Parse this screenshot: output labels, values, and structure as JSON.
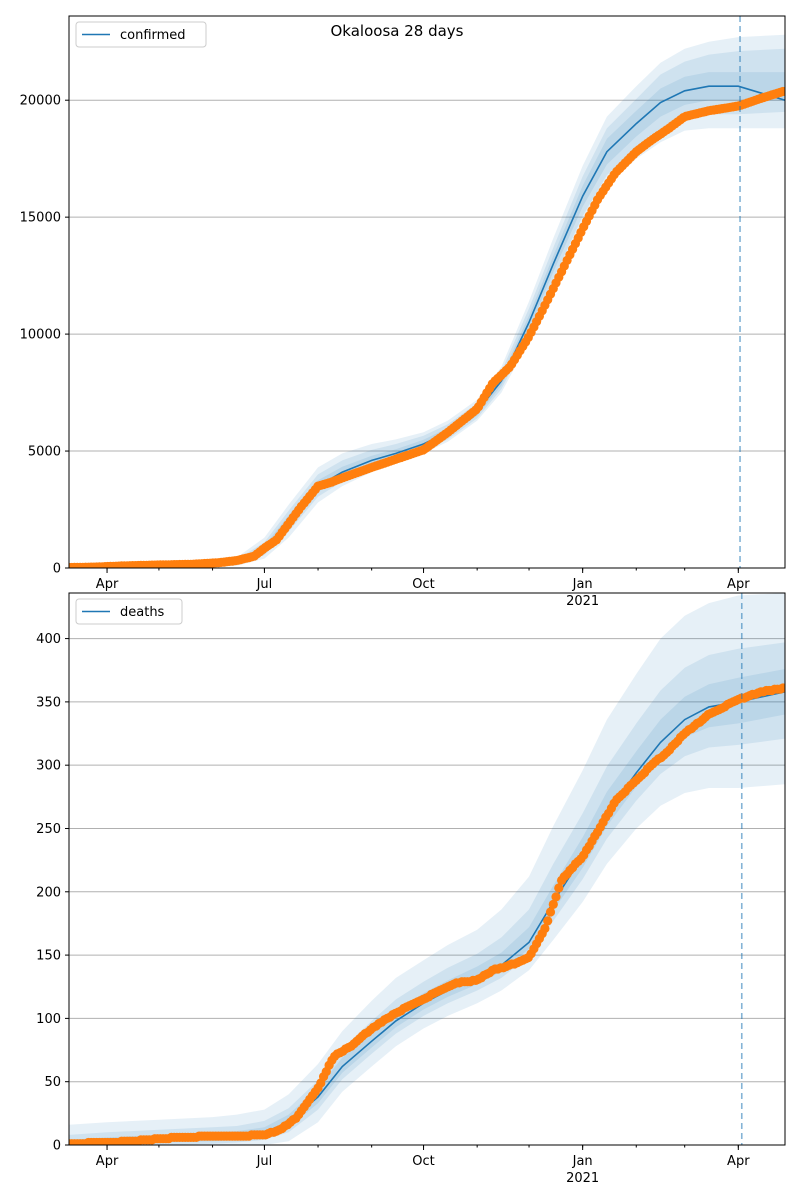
{
  "figure": {
    "title": "Okaloosa 28 days"
  },
  "colors": {
    "model": "#1f77b4",
    "observed": "#ff7f0e",
    "band": "#1f77b4",
    "grid": "#b0b0b0"
  },
  "chart_data": [
    {
      "type": "line",
      "legend": "confirmed",
      "legend_position": "top-left",
      "grid": "y",
      "x_range": [
        "2020-03-10",
        "2021-04-28"
      ],
      "ylim": [
        0,
        23600
      ],
      "y_ticks": [
        0,
        5000,
        10000,
        15000,
        20000
      ],
      "x_ticks": [
        {
          "date": "2020-04-01",
          "label": "Apr"
        },
        {
          "date": "2020-07-01",
          "label": "Jul"
        },
        {
          "date": "2020-10-01",
          "label": "Oct"
        },
        {
          "date": "2021-01-01",
          "label": "Jan",
          "sub": "2021"
        },
        {
          "date": "2021-04-01",
          "label": "Apr"
        }
      ],
      "forecast_start": "2021-04-02",
      "model": {
        "x": [
          "2020-03-10",
          "2020-04-01",
          "2020-05-01",
          "2020-06-01",
          "2020-06-15",
          "2020-07-01",
          "2020-07-15",
          "2020-08-01",
          "2020-08-15",
          "2020-09-01",
          "2020-09-15",
          "2020-10-01",
          "2020-10-15",
          "2020-11-01",
          "2020-11-15",
          "2020-12-01",
          "2020-12-15",
          "2021-01-01",
          "2021-01-15",
          "2021-02-01",
          "2021-02-15",
          "2021-03-01",
          "2021-03-15",
          "2021-04-01",
          "2021-04-28"
        ],
        "values": [
          20,
          60,
          100,
          160,
          250,
          800,
          2000,
          3500,
          4100,
          4600,
          4900,
          5300,
          5800,
          6700,
          8000,
          10500,
          13000,
          15900,
          17800,
          19000,
          19900,
          20400,
          20600,
          20600,
          20000
        ],
        "bands": [
          {
            "lower": [
              0,
              0,
              0,
              40,
              100,
              400,
              1300,
              2800,
              3500,
              4100,
              4500,
              4900,
              5400,
              6300,
              7500,
              9700,
              12000,
              14600,
              16300,
              17500,
              18200,
              18700,
              18800,
              18800,
              18800
            ],
            "upper": [
              40,
              120,
              200,
              280,
              450,
              1300,
              2700,
              4300,
              4900,
              5300,
              5500,
              5800,
              6300,
              7200,
              8600,
              11400,
              14100,
              17200,
              19300,
              20600,
              21600,
              22200,
              22500,
              22700,
              22800
            ]
          },
          {
            "lower": [
              0,
              10,
              40,
              80,
              160,
              550,
              1550,
              3050,
              3700,
              4250,
              4600,
              5000,
              5500,
              6400,
              7650,
              9950,
              12350,
              15050,
              16800,
              18000,
              18700,
              19250,
              19400,
              19400,
              19500
            ],
            "upper": [
              30,
              100,
              160,
              240,
              370,
              1100,
              2450,
              4000,
              4600,
              5050,
              5300,
              5650,
              6150,
              7050,
              8400,
              11100,
              13700,
              16750,
              18800,
              20050,
              21100,
              21650,
              21950,
              22100,
              22200
            ]
          },
          {
            "lower": [
              5,
              30,
              60,
              110,
              200,
              650,
              1750,
              3250,
              3880,
              4400,
              4720,
              5120,
              5620,
              6520,
              7800,
              10200,
              12650,
              15450,
              17250,
              18450,
              19300,
              19800,
              20000,
              20000,
              20000
            ],
            "upper": [
              25,
              80,
              130,
              200,
              300,
              950,
              2250,
              3750,
              4330,
              4800,
              5080,
              5480,
              5980,
              6880,
              8200,
              10800,
              13350,
              16350,
              18350,
              19550,
              20500,
              21000,
              21200,
              21200,
              21200
            ]
          }
        ]
      },
      "observed": {
        "x": [
          "2020-03-10",
          "2020-03-25",
          "2020-04-10",
          "2020-05-01",
          "2020-05-20",
          "2020-06-05",
          "2020-06-15",
          "2020-06-25",
          "2020-07-01",
          "2020-07-08",
          "2020-07-15",
          "2020-07-22",
          "2020-08-01",
          "2020-08-08",
          "2020-08-15",
          "2020-09-01",
          "2020-09-15",
          "2020-10-01",
          "2020-10-15",
          "2020-11-01",
          "2020-11-10",
          "2020-11-20",
          "2020-12-01",
          "2020-12-10",
          "2020-12-20",
          "2021-01-01",
          "2021-01-10",
          "2021-01-20",
          "2021-02-01",
          "2021-02-10",
          "2021-02-20",
          "2021-03-01",
          "2021-03-15",
          "2021-04-01",
          "2021-04-15",
          "2021-04-28"
        ],
        "values": [
          20,
          40,
          90,
          130,
          160,
          230,
          320,
          500,
          850,
          1200,
          1900,
          2600,
          3500,
          3650,
          3850,
          4300,
          4650,
          5050,
          5800,
          6800,
          7900,
          8600,
          9900,
          11200,
          12700,
          14500,
          15800,
          16900,
          17800,
          18300,
          18800,
          19300,
          19550,
          19750,
          20100,
          20400
        ]
      }
    },
    {
      "type": "line",
      "legend": "deaths",
      "legend_position": "top-left",
      "grid": "y",
      "x_range": [
        "2020-03-10",
        "2021-04-28"
      ],
      "ylim": [
        0,
        436
      ],
      "y_ticks": [
        0,
        50,
        100,
        150,
        200,
        250,
        300,
        350,
        400
      ],
      "x_ticks": [
        {
          "date": "2020-04-01",
          "label": "Apr"
        },
        {
          "date": "2020-07-01",
          "label": "Jul"
        },
        {
          "date": "2020-10-01",
          "label": "Oct"
        },
        {
          "date": "2021-01-01",
          "label": "Jan",
          "sub": "2021"
        },
        {
          "date": "2021-04-01",
          "label": "Apr"
        }
      ],
      "forecast_start": "2021-04-03",
      "model": {
        "x": [
          "2020-03-10",
          "2020-04-01",
          "2020-05-01",
          "2020-06-01",
          "2020-06-15",
          "2020-07-01",
          "2020-07-15",
          "2020-08-01",
          "2020-08-15",
          "2020-09-01",
          "2020-09-15",
          "2020-10-01",
          "2020-10-15",
          "2020-11-01",
          "2020-11-15",
          "2020-12-01",
          "2020-12-15",
          "2021-01-01",
          "2021-01-15",
          "2021-02-01",
          "2021-02-15",
          "2021-03-01",
          "2021-03-15",
          "2021-04-01",
          "2021-04-28"
        ],
        "values": [
          1,
          2,
          4,
          6,
          7,
          10,
          18,
          38,
          62,
          82,
          98,
          112,
          122,
          132,
          142,
          160,
          192,
          228,
          262,
          294,
          318,
          336,
          346,
          350,
          358
        ],
        "bands": [
          {
            "lower": [
              0,
              0,
              0,
              0,
              0,
              0,
              3,
              18,
              42,
              62,
              78,
              92,
              102,
              112,
              122,
              138,
              162,
              192,
              222,
              250,
              268,
              278,
              282,
              282,
              285
            ],
            "upper": [
              16,
              18,
              20,
              22,
              24,
              28,
              40,
              64,
              90,
              114,
              132,
              146,
              158,
              170,
              186,
              212,
              252,
              296,
              336,
              372,
              400,
              418,
              428,
              434,
              436
            ]
          },
          {
            "lower": [
              0,
              0,
              0,
              1,
              2,
              4,
              10,
              28,
              52,
              72,
              88,
              102,
              112,
              122,
              132,
              149,
              177,
              210,
              242,
              272,
              293,
              307,
              314,
              316,
              321
            ],
            "upper": [
              8,
              10,
              12,
              14,
              15,
              19,
              29,
              51,
              76,
              98,
              115,
              129,
              140,
              151,
              164,
              186,
              222,
              262,
              299,
              333,
              359,
              377,
              387,
              392,
              397
            ]
          },
          {
            "lower": [
              0,
              1,
              2,
              3,
              4,
              7,
              14,
              33,
              57,
              77,
              93,
              107,
              117,
              127,
              137,
              155,
              185,
              219,
              252,
              283,
              306,
              322,
              330,
              333,
              340
            ],
            "upper": [
              4,
              6,
              8,
              10,
              11,
              14,
              24,
              45,
              69,
              89,
              106,
              120,
              130,
              141,
              152,
              172,
              205,
              243,
              279,
              311,
              336,
              354,
              364,
              369,
              376
            ]
          }
        ]
      },
      "observed": {
        "x": [
          "2020-03-10",
          "2020-04-01",
          "2020-04-15",
          "2020-05-01",
          "2020-05-15",
          "2020-06-01",
          "2020-06-15",
          "2020-07-01",
          "2020-07-10",
          "2020-07-20",
          "2020-08-01",
          "2020-08-10",
          "2020-08-20",
          "2020-09-01",
          "2020-09-10",
          "2020-09-20",
          "2020-10-01",
          "2020-10-10",
          "2020-10-20",
          "2020-11-01",
          "2020-11-10",
          "2020-11-20",
          "2020-12-01",
          "2020-12-10",
          "2020-12-20",
          "2021-01-01",
          "2021-01-10",
          "2021-01-20",
          "2021-02-01",
          "2021-02-10",
          "2021-02-20",
          "2021-03-01",
          "2021-03-15",
          "2021-04-01",
          "2021-04-15",
          "2021-04-28"
        ],
        "values": [
          1,
          2,
          3,
          5,
          6,
          7,
          7,
          8,
          12,
          22,
          45,
          70,
          78,
          92,
          100,
          108,
          115,
          122,
          128,
          130,
          138,
          142,
          148,
          170,
          210,
          228,
          248,
          272,
          288,
          300,
          312,
          325,
          340,
          352,
          358,
          361
        ]
      }
    }
  ]
}
